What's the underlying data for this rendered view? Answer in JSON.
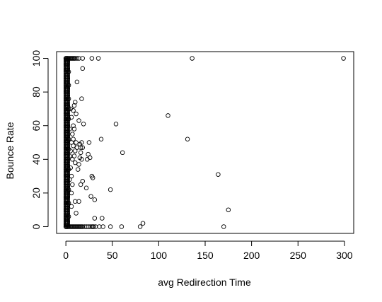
{
  "chart_data": {
    "type": "scatter",
    "title": "",
    "xlabel": "avg Redirection Time",
    "ylabel": "Bounce Rate",
    "xlim": [
      -10,
      310
    ],
    "ylim": [
      -4,
      104
    ],
    "x_ticks": [
      0,
      50,
      100,
      150,
      200,
      250,
      300
    ],
    "y_ticks": [
      0,
      20,
      40,
      60,
      80,
      100
    ],
    "grid": false,
    "marker": "open-circle",
    "marker_color": "#000000",
    "series": [
      {
        "points": [
          [
            0,
            100
          ],
          [
            1,
            100
          ],
          [
            2,
            100
          ],
          [
            3,
            100
          ],
          [
            4,
            100
          ],
          [
            5,
            100
          ],
          [
            6,
            100
          ],
          [
            7,
            100
          ],
          [
            8,
            100
          ],
          [
            9,
            100
          ],
          [
            10,
            100
          ],
          [
            12,
            100
          ],
          [
            14,
            100
          ],
          [
            18,
            100
          ],
          [
            28,
            100
          ],
          [
            35,
            100
          ],
          [
            136,
            100
          ],
          [
            299,
            100
          ],
          [
            0,
            0
          ],
          [
            1,
            0
          ],
          [
            2,
            0
          ],
          [
            3,
            0
          ],
          [
            4,
            0
          ],
          [
            5,
            0
          ],
          [
            6,
            0
          ],
          [
            7,
            0
          ],
          [
            8,
            0
          ],
          [
            9,
            0
          ],
          [
            10,
            0
          ],
          [
            11,
            0
          ],
          [
            12,
            0
          ],
          [
            13,
            0
          ],
          [
            14,
            0
          ],
          [
            15,
            0
          ],
          [
            16,
            0
          ],
          [
            17,
            0
          ],
          [
            18,
            0
          ],
          [
            20,
            0
          ],
          [
            22,
            0
          ],
          [
            24,
            0
          ],
          [
            26,
            0
          ],
          [
            28,
            0
          ],
          [
            29,
            0
          ],
          [
            30,
            0
          ],
          [
            32,
            0
          ],
          [
            36,
            0
          ],
          [
            40,
            0
          ],
          [
            48,
            0
          ],
          [
            60,
            0
          ],
          [
            80,
            0
          ],
          [
            170,
            0
          ],
          [
            1,
            2
          ],
          [
            2,
            3
          ],
          [
            1,
            5
          ],
          [
            3,
            6
          ],
          [
            2,
            8
          ],
          [
            1,
            10
          ],
          [
            2,
            12
          ],
          [
            3,
            14
          ],
          [
            1,
            16
          ],
          [
            2,
            18
          ],
          [
            1,
            20
          ],
          [
            3,
            22
          ],
          [
            2,
            24
          ],
          [
            1,
            26
          ],
          [
            4,
            28
          ],
          [
            2,
            30
          ],
          [
            1,
            32
          ],
          [
            3,
            34
          ],
          [
            2,
            36
          ],
          [
            1,
            38
          ],
          [
            2,
            40
          ],
          [
            4,
            42
          ],
          [
            1,
            44
          ],
          [
            3,
            46
          ],
          [
            2,
            48
          ],
          [
            1,
            50
          ],
          [
            3,
            52
          ],
          [
            2,
            54
          ],
          [
            1,
            56
          ],
          [
            4,
            58
          ],
          [
            2,
            60
          ],
          [
            1,
            62
          ],
          [
            3,
            64
          ],
          [
            2,
            66
          ],
          [
            1,
            68
          ],
          [
            3,
            70
          ],
          [
            2,
            72
          ],
          [
            1,
            74
          ],
          [
            3,
            76
          ],
          [
            2,
            78
          ],
          [
            1,
            80
          ],
          [
            2,
            82
          ],
          [
            3,
            84
          ],
          [
            1,
            86
          ],
          [
            2,
            88
          ],
          [
            1,
            90
          ],
          [
            3,
            92
          ],
          [
            2,
            94
          ],
          [
            1,
            96
          ],
          [
            2,
            98
          ],
          [
            5,
            45
          ],
          [
            6,
            50
          ],
          [
            7,
            40
          ],
          [
            5,
            35
          ],
          [
            6,
            30
          ],
          [
            7,
            55
          ],
          [
            8,
            60
          ],
          [
            6,
            65
          ],
          [
            5,
            70
          ],
          [
            7,
            25
          ],
          [
            6,
            20
          ],
          [
            8,
            48
          ],
          [
            9,
            42
          ],
          [
            10,
            38
          ],
          [
            8,
            52
          ],
          [
            9,
            58
          ],
          [
            10,
            45
          ],
          [
            11,
            50
          ],
          [
            12,
            47
          ],
          [
            6,
            12
          ],
          [
            9,
            72
          ],
          [
            10,
            74
          ],
          [
            11,
            67
          ],
          [
            8,
            69
          ],
          [
            12,
            86
          ],
          [
            15,
            41
          ],
          [
            16,
            47
          ],
          [
            15,
            49
          ],
          [
            17,
            50
          ],
          [
            16,
            44
          ],
          [
            18,
            47
          ],
          [
            17,
            40
          ],
          [
            14,
            37
          ],
          [
            16,
            25
          ],
          [
            18,
            27
          ],
          [
            22,
            23
          ],
          [
            24,
            43
          ],
          [
            26,
            41
          ],
          [
            23,
            40
          ],
          [
            18,
            94
          ],
          [
            17,
            76
          ],
          [
            19,
            61
          ],
          [
            14,
            63
          ],
          [
            13,
            34
          ],
          [
            14,
            15
          ],
          [
            11,
            8
          ],
          [
            10,
            15
          ],
          [
            25,
            50
          ],
          [
            28,
            30
          ],
          [
            29,
            29
          ],
          [
            27,
            18
          ],
          [
            31,
            16
          ],
          [
            31,
            5
          ],
          [
            39,
            5
          ],
          [
            38,
            52
          ],
          [
            48,
            22
          ],
          [
            54,
            61
          ],
          [
            61,
            44
          ],
          [
            83,
            2
          ],
          [
            110,
            66
          ],
          [
            131,
            52
          ],
          [
            164,
            31
          ],
          [
            175,
            10
          ]
        ]
      }
    ]
  }
}
